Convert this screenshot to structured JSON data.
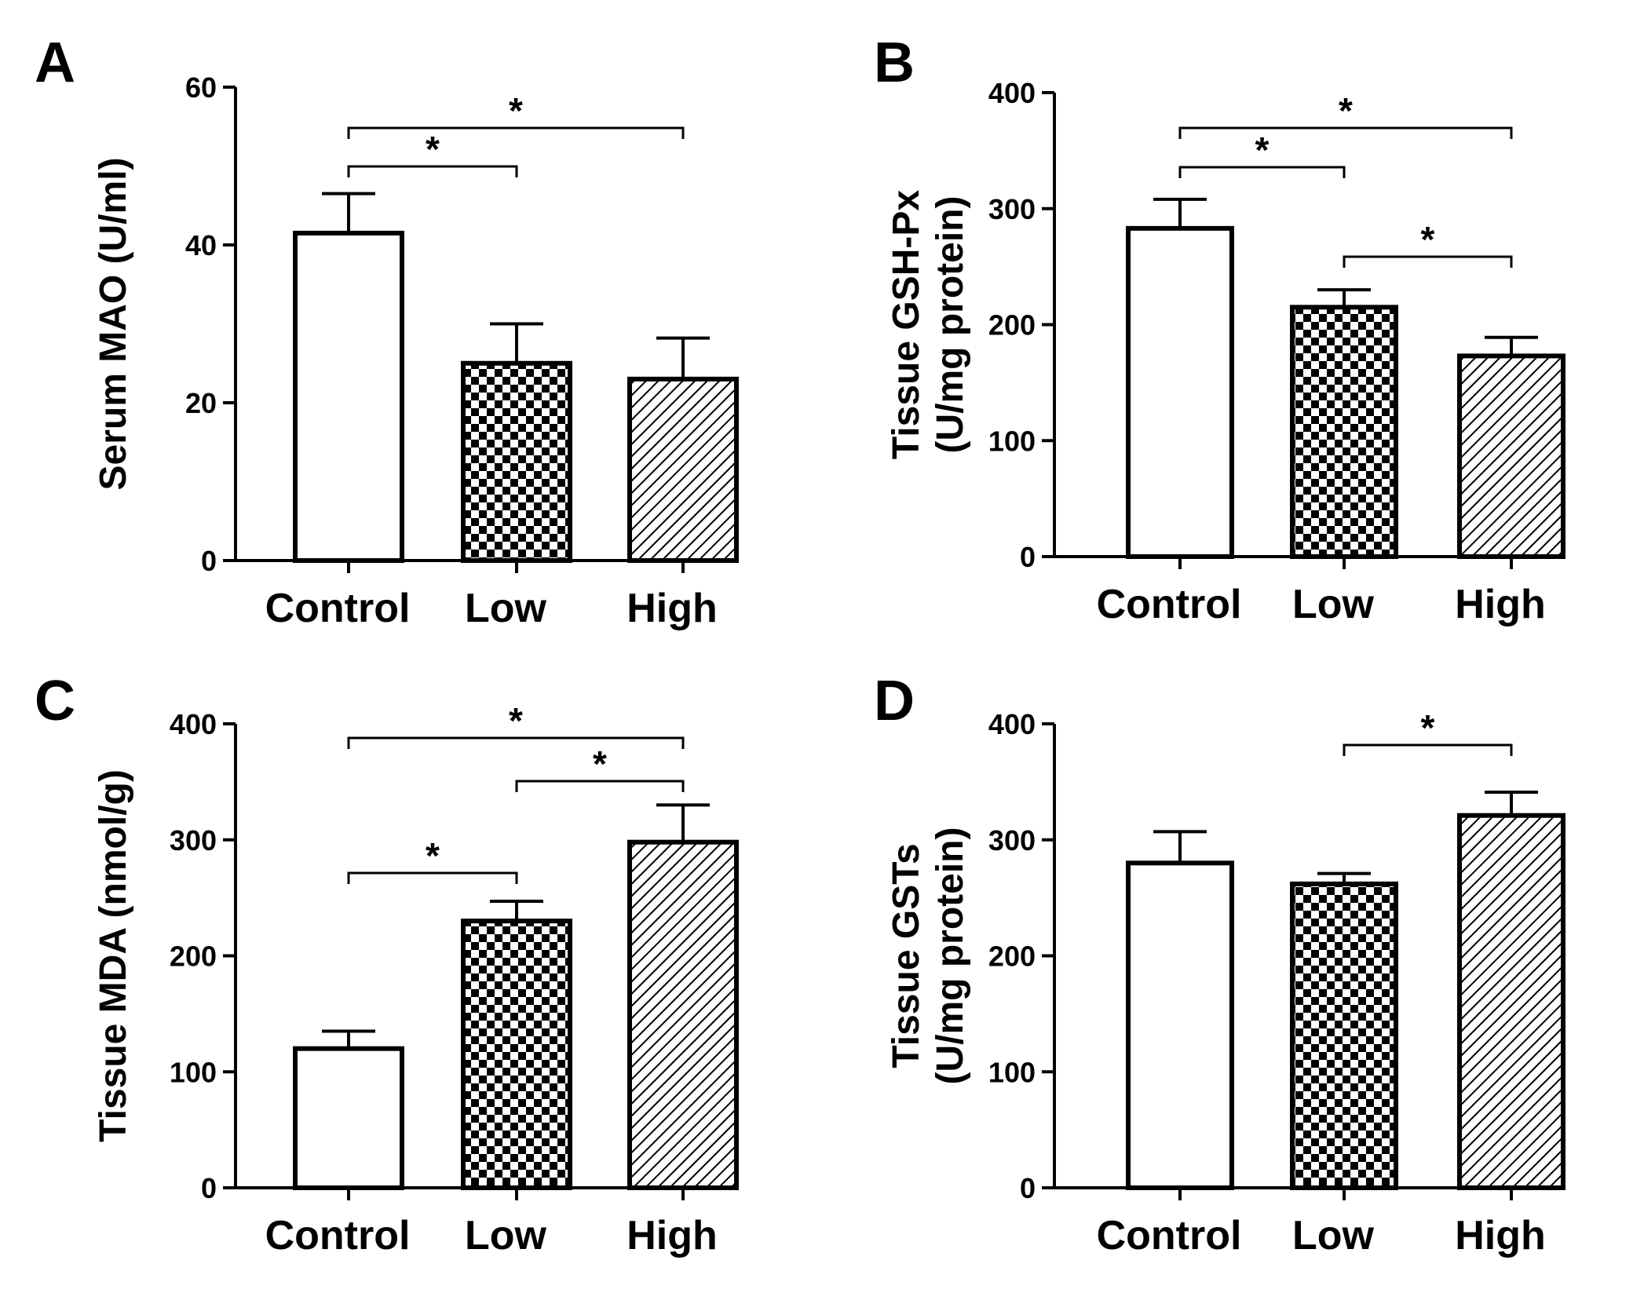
{
  "colors": {
    "ink": "#000000",
    "background": "#ffffff"
  },
  "chart_data": [
    {
      "panel": "A",
      "type": "bar",
      "ylabel_lines": [
        "Serum MAO (U/ml)"
      ],
      "categories": [
        "Control",
        "Low",
        "High"
      ],
      "fills": [
        "none",
        "checker",
        "hatch"
      ],
      "values": [
        41.5,
        25,
        23
      ],
      "errors": [
        5,
        5,
        5.2
      ],
      "ylim": [
        0,
        60
      ],
      "yticks": [
        0,
        20,
        40,
        60
      ],
      "significance": [
        {
          "from": 0,
          "to": 1,
          "label": "*"
        },
        {
          "from": 0,
          "to": 2,
          "label": "*"
        }
      ]
    },
    {
      "panel": "B",
      "type": "bar",
      "ylabel_lines": [
        "Tissue GSH-Px",
        "(U/mg protein)"
      ],
      "categories": [
        "Control",
        "Low",
        "High"
      ],
      "fills": [
        "none",
        "checker",
        "hatch"
      ],
      "values": [
        283,
        215,
        173
      ],
      "errors": [
        25,
        15,
        16
      ],
      "ylim": [
        0,
        400
      ],
      "yticks": [
        0,
        100,
        200,
        300,
        400
      ],
      "significance": [
        {
          "from": 0,
          "to": 1,
          "label": "*"
        },
        {
          "from": 0,
          "to": 2,
          "label": "*"
        },
        {
          "from": 1,
          "to": 2,
          "label": "*"
        }
      ]
    },
    {
      "panel": "C",
      "type": "bar",
      "ylabel_lines": [
        "Tissue MDA (nmol/g)"
      ],
      "categories": [
        "Control",
        "Low",
        "High"
      ],
      "fills": [
        "none",
        "checker",
        "hatch"
      ],
      "values": [
        120,
        230,
        298
      ],
      "errors": [
        15,
        17,
        32
      ],
      "ylim": [
        0,
        400
      ],
      "yticks": [
        0,
        100,
        200,
        300,
        400
      ],
      "significance": [
        {
          "from": 0,
          "to": 1,
          "label": "*"
        },
        {
          "from": 1,
          "to": 2,
          "label": "*"
        },
        {
          "from": 0,
          "to": 2,
          "label": "*"
        }
      ]
    },
    {
      "panel": "D",
      "type": "bar",
      "ylabel_lines": [
        "Tissue GSTs",
        "(U/mg protein)"
      ],
      "categories": [
        "Control",
        "Low",
        "High"
      ],
      "fills": [
        "none",
        "checker",
        "hatch"
      ],
      "values": [
        280,
        262,
        321
      ],
      "errors": [
        27,
        9,
        20
      ],
      "ylim": [
        0,
        400
      ],
      "yticks": [
        0,
        100,
        200,
        300,
        400
      ],
      "significance": [
        {
          "from": 1,
          "to": 2,
          "label": "*"
        }
      ]
    }
  ]
}
